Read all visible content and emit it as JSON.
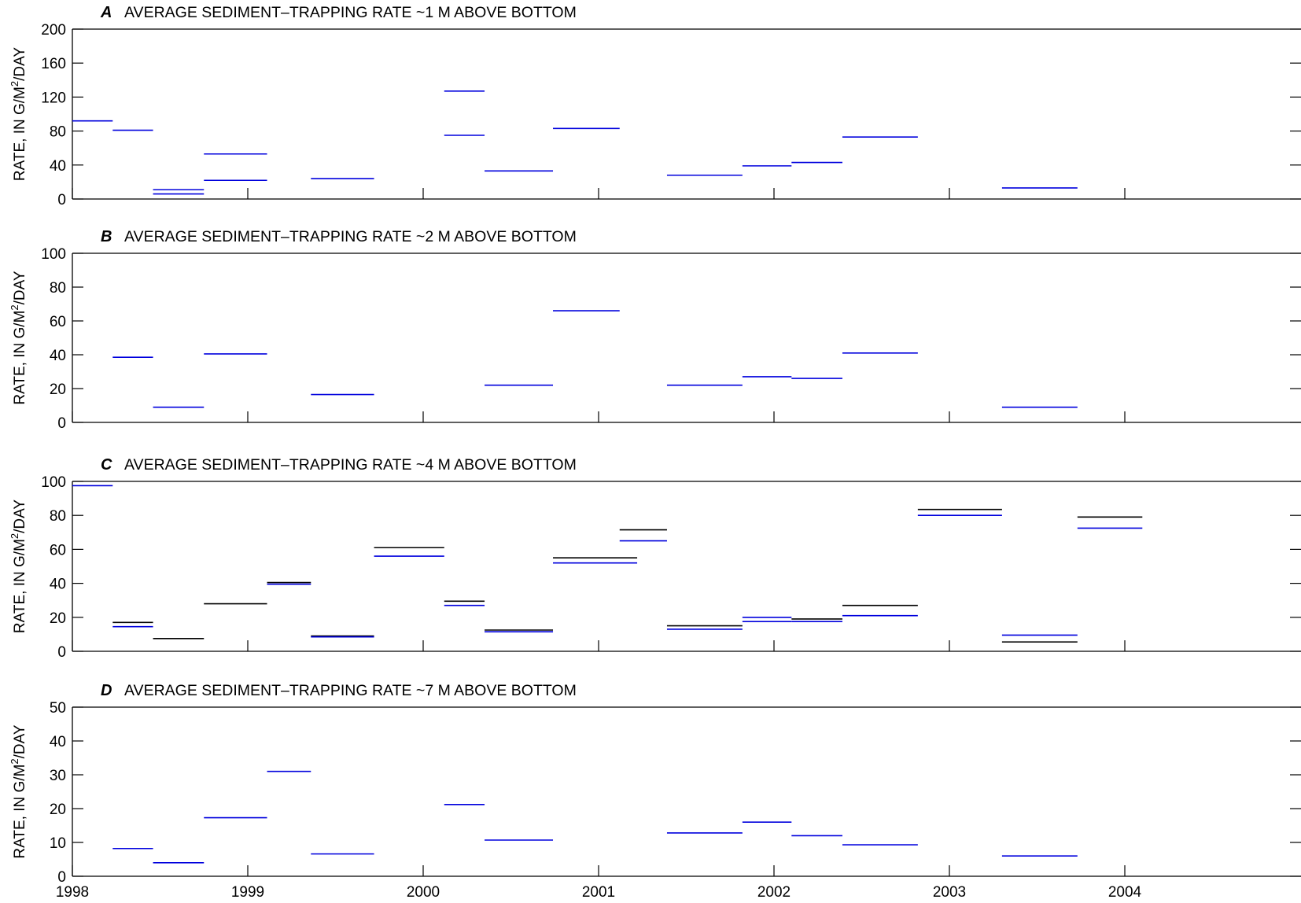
{
  "chart_data": {
    "type": "line",
    "x_axis": {
      "scale": "time",
      "xlim": [
        1998.0,
        2005.0
      ],
      "ticks": [
        1998,
        1999,
        2000,
        2001,
        2002,
        2003,
        2004
      ],
      "tick_labels": [
        "1998",
        "1999",
        "2000",
        "2001",
        "2002",
        "2003",
        "2004"
      ]
    },
    "grid": false,
    "legend": "none",
    "colors": {
      "blue": "#0000dd",
      "black": "#000000"
    },
    "panels": [
      {
        "letter": "A",
        "title": "AVERAGE SEDIMENT–TRAPPING RATE ~1 M ABOVE BOTTOM",
        "ylabel_main": "RATE, IN G/M",
        "ylabel_sup": "2",
        "ylabel_tail": "/DAY",
        "ylim": [
          0,
          200
        ],
        "yticks": [
          0,
          40,
          80,
          120,
          160,
          200
        ],
        "segments": [
          {
            "x0": 1998.0,
            "x1": 1998.23,
            "y": 92,
            "color": "blue"
          },
          {
            "x0": 1998.23,
            "x1": 1998.46,
            "y": 81,
            "color": "blue"
          },
          {
            "x0": 1998.46,
            "x1": 1998.75,
            "y": 11,
            "color": "blue"
          },
          {
            "x0": 1998.46,
            "x1": 1998.75,
            "y": 6,
            "color": "blue"
          },
          {
            "x0": 1998.75,
            "x1": 1999.11,
            "y": 53,
            "color": "blue"
          },
          {
            "x0": 1998.75,
            "x1": 1999.11,
            "y": 22,
            "color": "blue"
          },
          {
            "x0": 1999.36,
            "x1": 1999.72,
            "y": 24,
            "color": "blue"
          },
          {
            "x0": 2000.12,
            "x1": 2000.35,
            "y": 127,
            "color": "blue"
          },
          {
            "x0": 2000.12,
            "x1": 2000.35,
            "y": 75,
            "color": "blue"
          },
          {
            "x0": 2000.35,
            "x1": 2000.74,
            "y": 33,
            "color": "blue"
          },
          {
            "x0": 2000.74,
            "x1": 2001.12,
            "y": 83,
            "color": "blue"
          },
          {
            "x0": 2001.39,
            "x1": 2001.82,
            "y": 28,
            "color": "blue"
          },
          {
            "x0": 2001.82,
            "x1": 2002.1,
            "y": 39,
            "color": "blue"
          },
          {
            "x0": 2002.1,
            "x1": 2002.39,
            "y": 43,
            "color": "blue"
          },
          {
            "x0": 2002.39,
            "x1": 2002.82,
            "y": 73,
            "color": "blue"
          },
          {
            "x0": 2003.3,
            "x1": 2003.73,
            "y": 13,
            "color": "blue"
          }
        ]
      },
      {
        "letter": "B",
        "title": "AVERAGE SEDIMENT–TRAPPING RATE ~2 M ABOVE BOTTOM",
        "ylabel_main": "RATE, IN G/M",
        "ylabel_sup": "2",
        "ylabel_tail": "/DAY",
        "ylim": [
          0,
          100
        ],
        "yticks": [
          0,
          20,
          40,
          60,
          80,
          100
        ],
        "segments": [
          {
            "x0": 1998.23,
            "x1": 1998.46,
            "y": 38.5,
            "color": "blue"
          },
          {
            "x0": 1998.46,
            "x1": 1998.75,
            "y": 9,
            "color": "blue"
          },
          {
            "x0": 1998.75,
            "x1": 1999.11,
            "y": 40.5,
            "color": "blue"
          },
          {
            "x0": 1999.36,
            "x1": 1999.72,
            "y": 16.5,
            "color": "blue"
          },
          {
            "x0": 2000.35,
            "x1": 2000.74,
            "y": 22,
            "color": "blue"
          },
          {
            "x0": 2000.74,
            "x1": 2001.12,
            "y": 66,
            "color": "blue"
          },
          {
            "x0": 2001.39,
            "x1": 2001.82,
            "y": 22,
            "color": "blue"
          },
          {
            "x0": 2001.82,
            "x1": 2002.1,
            "y": 27,
            "color": "blue"
          },
          {
            "x0": 2002.1,
            "x1": 2002.39,
            "y": 26,
            "color": "blue"
          },
          {
            "x0": 2002.39,
            "x1": 2002.82,
            "y": 41,
            "color": "blue"
          },
          {
            "x0": 2003.3,
            "x1": 2003.73,
            "y": 9,
            "color": "blue"
          }
        ]
      },
      {
        "letter": "C",
        "title": "AVERAGE SEDIMENT–TRAPPING RATE ~4 M ABOVE BOTTOM",
        "ylabel_main": "RATE, IN G/M",
        "ylabel_sup": "2",
        "ylabel_tail": "/DAY",
        "ylim": [
          0,
          100
        ],
        "yticks": [
          0,
          20,
          40,
          60,
          80,
          100
        ],
        "segments": [
          {
            "x0": 1998.0,
            "x1": 1998.23,
            "y": 97.5,
            "color": "blue"
          },
          {
            "x0": 1998.23,
            "x1": 1998.46,
            "y": 17,
            "color": "black"
          },
          {
            "x0": 1998.23,
            "x1": 1998.46,
            "y": 14.5,
            "color": "blue"
          },
          {
            "x0": 1998.46,
            "x1": 1998.75,
            "y": 7.5,
            "color": "black"
          },
          {
            "x0": 1998.75,
            "x1": 1999.11,
            "y": 28,
            "color": "black"
          },
          {
            "x0": 1999.11,
            "x1": 1999.36,
            "y": 40.5,
            "color": "black"
          },
          {
            "x0": 1999.11,
            "x1": 1999.36,
            "y": 39.5,
            "color": "blue"
          },
          {
            "x0": 1999.36,
            "x1": 1999.72,
            "y": 9,
            "color": "black"
          },
          {
            "x0": 1999.36,
            "x1": 1999.72,
            "y": 8.5,
            "color": "blue"
          },
          {
            "x0": 1999.72,
            "x1": 2000.12,
            "y": 61,
            "color": "black"
          },
          {
            "x0": 1999.72,
            "x1": 2000.12,
            "y": 56,
            "color": "blue"
          },
          {
            "x0": 2000.12,
            "x1": 2000.35,
            "y": 29.5,
            "color": "black"
          },
          {
            "x0": 2000.12,
            "x1": 2000.35,
            "y": 27,
            "color": "blue"
          },
          {
            "x0": 2000.35,
            "x1": 2000.74,
            "y": 12.5,
            "color": "black"
          },
          {
            "x0": 2000.35,
            "x1": 2000.74,
            "y": 11.5,
            "color": "blue"
          },
          {
            "x0": 2000.74,
            "x1": 2001.22,
            "y": 55,
            "color": "black"
          },
          {
            "x0": 2000.74,
            "x1": 2001.22,
            "y": 52,
            "color": "blue"
          },
          {
            "x0": 2001.12,
            "x1": 2001.39,
            "y": 71.5,
            "color": "black"
          },
          {
            "x0": 2001.12,
            "x1": 2001.39,
            "y": 65,
            "color": "blue"
          },
          {
            "x0": 2001.39,
            "x1": 2001.82,
            "y": 15,
            "color": "black"
          },
          {
            "x0": 2001.39,
            "x1": 2001.82,
            "y": 13,
            "color": "blue"
          },
          {
            "x0": 2001.82,
            "x1": 2002.1,
            "y": 20,
            "color": "blue"
          },
          {
            "x0": 2001.82,
            "x1": 2002.1,
            "y": 17.5,
            "color": "blue"
          },
          {
            "x0": 2002.1,
            "x1": 2002.39,
            "y": 19,
            "color": "black"
          },
          {
            "x0": 2002.1,
            "x1": 2002.39,
            "y": 17.5,
            "color": "blue"
          },
          {
            "x0": 2002.39,
            "x1": 2002.82,
            "y": 27,
            "color": "black"
          },
          {
            "x0": 2002.39,
            "x1": 2002.82,
            "y": 21,
            "color": "blue"
          },
          {
            "x0": 2002.82,
            "x1": 2003.3,
            "y": 83.5,
            "color": "black"
          },
          {
            "x0": 2002.82,
            "x1": 2003.3,
            "y": 80,
            "color": "blue"
          },
          {
            "x0": 2003.3,
            "x1": 2003.73,
            "y": 9.5,
            "color": "blue"
          },
          {
            "x0": 2003.3,
            "x1": 2003.73,
            "y": 5.5,
            "color": "black"
          },
          {
            "x0": 2003.73,
            "x1": 2004.1,
            "y": 79,
            "color": "black"
          },
          {
            "x0": 2003.73,
            "x1": 2004.1,
            "y": 72.5,
            "color": "blue"
          }
        ]
      },
      {
        "letter": "D",
        "title": "AVERAGE SEDIMENT–TRAPPING RATE ~7 M ABOVE BOTTOM",
        "ylabel_main": "RATE, IN G/M",
        "ylabel_sup": "2",
        "ylabel_tail": "/DAY",
        "ylim": [
          0,
          50
        ],
        "yticks": [
          0,
          10,
          20,
          30,
          40,
          50
        ],
        "segments": [
          {
            "x0": 1998.23,
            "x1": 1998.46,
            "y": 8.2,
            "color": "blue"
          },
          {
            "x0": 1998.46,
            "x1": 1998.75,
            "y": 4,
            "color": "blue"
          },
          {
            "x0": 1998.75,
            "x1": 1999.11,
            "y": 17.3,
            "color": "blue"
          },
          {
            "x0": 1999.11,
            "x1": 1999.36,
            "y": 31,
            "color": "blue"
          },
          {
            "x0": 1999.36,
            "x1": 1999.72,
            "y": 6.6,
            "color": "blue"
          },
          {
            "x0": 2000.12,
            "x1": 2000.35,
            "y": 21.2,
            "color": "blue"
          },
          {
            "x0": 2000.35,
            "x1": 2000.74,
            "y": 10.7,
            "color": "blue"
          },
          {
            "x0": 2001.39,
            "x1": 2001.82,
            "y": 12.8,
            "color": "blue"
          },
          {
            "x0": 2001.82,
            "x1": 2002.1,
            "y": 16,
            "color": "blue"
          },
          {
            "x0": 2002.1,
            "x1": 2002.39,
            "y": 12,
            "color": "blue"
          },
          {
            "x0": 2002.39,
            "x1": 2002.82,
            "y": 9.3,
            "color": "blue"
          },
          {
            "x0": 2003.3,
            "x1": 2003.73,
            "y": 6,
            "color": "blue"
          }
        ]
      }
    ]
  }
}
